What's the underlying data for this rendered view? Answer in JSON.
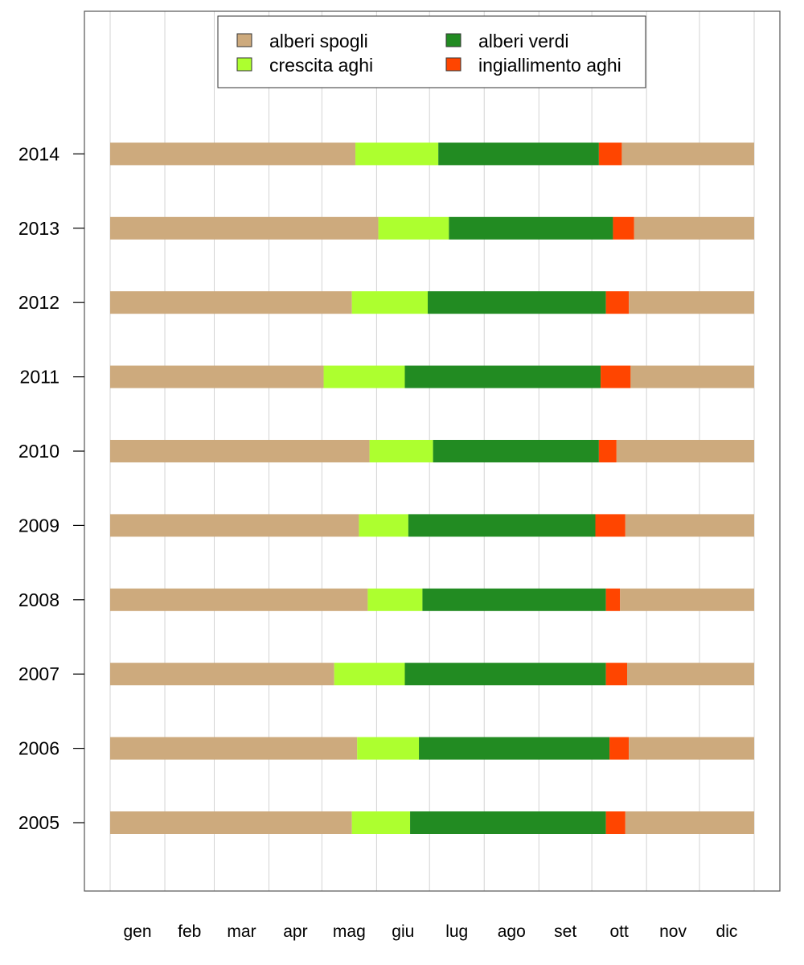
{
  "chart_data": {
    "type": "bar",
    "orientation": "horizontal",
    "stacked": true,
    "title": "",
    "xlabel": "",
    "ylabel": "",
    "x_unit": "day of year",
    "xlim": [
      1,
      366
    ],
    "month_labels": [
      "gen",
      "feb",
      "mar",
      "apr",
      "mag",
      "giu",
      "lug",
      "ago",
      "set",
      "ott",
      "nov",
      "dic"
    ],
    "categories": [
      "2005",
      "2006",
      "2007",
      "2008",
      "2009",
      "2010",
      "2011",
      "2012",
      "2013",
      "2014"
    ],
    "series": [
      {
        "name": "alberi spogli",
        "key": "bare",
        "color": "#CDAA7D",
        "start": [
          1,
          1,
          1,
          1,
          1,
          1,
          1,
          1,
          1,
          1
        ],
        "end": [
          138,
          141,
          128,
          147,
          142,
          148,
          122,
          138,
          153,
          140
        ]
      },
      {
        "name": "crescita aghi",
        "key": "growth",
        "color": "#ADFF2F",
        "start": [
          138,
          141,
          128,
          147,
          142,
          148,
          122,
          138,
          153,
          140
        ],
        "end": [
          171,
          176,
          168,
          178,
          170,
          184,
          168,
          181,
          193,
          187
        ]
      },
      {
        "name": "alberi verdi",
        "key": "green",
        "color": "#228B22",
        "start": [
          171,
          176,
          168,
          178,
          170,
          184,
          168,
          181,
          193,
          187
        ],
        "end": [
          282,
          284,
          282,
          282,
          276,
          278,
          279,
          282,
          286,
          278
        ]
      },
      {
        "name": "ingiallimento aghi",
        "key": "yellowing",
        "color": "#FF4500",
        "start": [
          282,
          284,
          282,
          282,
          276,
          278,
          279,
          282,
          286,
          278
        ],
        "end": [
          293,
          295,
          294,
          290,
          293,
          288,
          296,
          295,
          298,
          291
        ]
      },
      {
        "name": "alberi spogli",
        "key": "bare_late",
        "color": "#CDAA7D",
        "legend": false,
        "start": [
          293,
          295,
          294,
          290,
          293,
          288,
          296,
          295,
          298,
          291
        ],
        "end": [
          366,
          366,
          366,
          366,
          366,
          366,
          366,
          366,
          366,
          366
        ]
      }
    ],
    "legend": {
      "position": "top-center",
      "entries": [
        {
          "label": "alberi spogli",
          "color": "#CDAA7D"
        },
        {
          "label": "alberi verdi",
          "color": "#228B22"
        },
        {
          "label": "crescita aghi",
          "color": "#ADFF2F"
        },
        {
          "label": "ingiallimento aghi",
          "color": "#FF4500"
        }
      ]
    },
    "grid": true
  }
}
